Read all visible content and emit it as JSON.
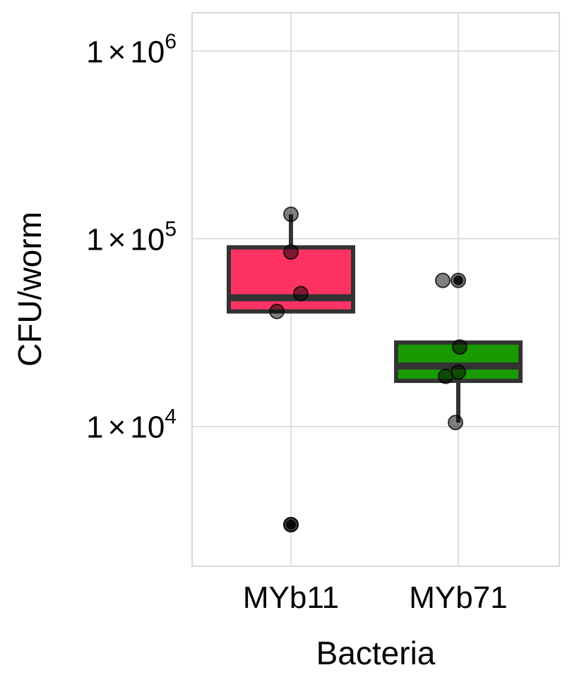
{
  "chart_data": {
    "type": "box",
    "title": "",
    "xlabel": "Bacteria",
    "ylabel": "CFU/worm",
    "y_scale": "log10",
    "ylim": [
      1800,
      1600000
    ],
    "y_ticks": [
      {
        "value": 10000,
        "mantissa": "1",
        "exponent": "4"
      },
      {
        "value": 100000,
        "mantissa": "1",
        "exponent": "5"
      },
      {
        "value": 1000000,
        "mantissa": "1",
        "exponent": "6"
      }
    ],
    "times_symbol": "×",
    "tick_base": "10",
    "grid": true,
    "legend": "none",
    "categories": [
      "MYb11",
      "MYb71"
    ],
    "series": [
      {
        "category": "MYb11",
        "color": "#ff3363",
        "box": {
          "q1": 41000,
          "median": 48500,
          "q3": 90000,
          "whisker_low": 41000,
          "whisker_high": 135000
        },
        "outliers": [
          3000
        ],
        "points": [
          135000,
          85000,
          51000,
          41000,
          3000,
          3000
        ]
      },
      {
        "category": "MYb71",
        "color": "#189a00",
        "box": {
          "q1": 17500,
          "median": 21000,
          "q3": 28000,
          "whisker_low": 10500,
          "whisker_high": 28000
        },
        "outliers": [
          60000,
          60000
        ],
        "points": [
          60000,
          60000,
          26500,
          19500,
          18500,
          10500
        ]
      }
    ]
  }
}
